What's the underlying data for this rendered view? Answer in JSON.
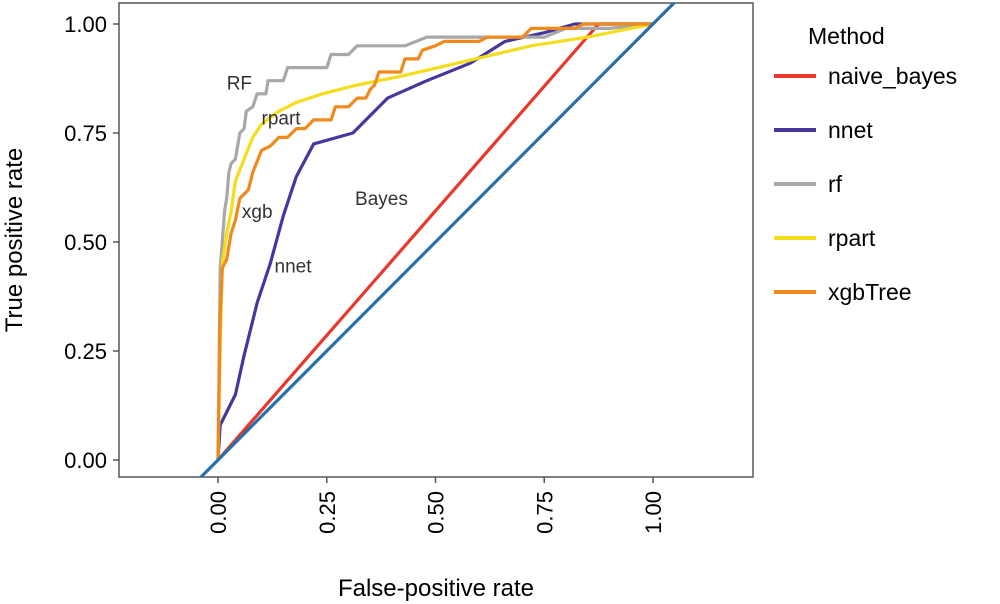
{
  "chart_data": {
    "type": "line",
    "title": "",
    "xlabel": "False-positive rate",
    "ylabel": "True positive rate",
    "xlim": [
      -0.23,
      1.23
    ],
    "ylim": [
      -0.06,
      1.03
    ],
    "x_ticks": [
      "0.00",
      "0.25",
      "0.50",
      "0.75",
      "1.00"
    ],
    "y_ticks": [
      "0.00",
      "0.25",
      "0.50",
      "0.75",
      "1.00"
    ],
    "grid": false,
    "legend": {
      "title": "Method",
      "position": "right"
    },
    "series": [
      {
        "name": "naive_bayes",
        "color": "#e8382b",
        "points": [
          [
            0,
            0
          ],
          [
            0.875,
            1
          ],
          [
            1,
            1
          ]
        ]
      },
      {
        "name": "nnet",
        "color": "#46379e",
        "points": [
          [
            0,
            0
          ],
          [
            0.005,
            0.08
          ],
          [
            0.02,
            0.11
          ],
          [
            0.04,
            0.15
          ],
          [
            0.06,
            0.24
          ],
          [
            0.09,
            0.36
          ],
          [
            0.12,
            0.45
          ],
          [
            0.15,
            0.56
          ],
          [
            0.18,
            0.65
          ],
          [
            0.22,
            0.725
          ],
          [
            0.31,
            0.75
          ],
          [
            0.34,
            0.78
          ],
          [
            0.39,
            0.83
          ],
          [
            0.48,
            0.87
          ],
          [
            0.58,
            0.91
          ],
          [
            0.66,
            0.96
          ],
          [
            0.75,
            0.98
          ],
          [
            0.82,
            1
          ],
          [
            0.92,
            1
          ],
          [
            1,
            1
          ]
        ]
      },
      {
        "name": "rf",
        "color": "#a8a8a8",
        "points": [
          [
            0,
            0
          ],
          [
            0.005,
            0.44
          ],
          [
            0.01,
            0.5
          ],
          [
            0.015,
            0.57
          ],
          [
            0.02,
            0.6
          ],
          [
            0.025,
            0.66
          ],
          [
            0.03,
            0.68
          ],
          [
            0.04,
            0.69
          ],
          [
            0.045,
            0.72
          ],
          [
            0.05,
            0.75
          ],
          [
            0.06,
            0.76
          ],
          [
            0.065,
            0.8
          ],
          [
            0.08,
            0.81
          ],
          [
            0.09,
            0.84
          ],
          [
            0.11,
            0.84
          ],
          [
            0.115,
            0.87
          ],
          [
            0.15,
            0.87
          ],
          [
            0.16,
            0.9
          ],
          [
            0.25,
            0.9
          ],
          [
            0.26,
            0.93
          ],
          [
            0.3,
            0.93
          ],
          [
            0.32,
            0.95
          ],
          [
            0.43,
            0.95
          ],
          [
            0.48,
            0.97
          ],
          [
            0.75,
            0.97
          ],
          [
            0.8,
            0.99
          ],
          [
            0.9,
            0.99
          ],
          [
            1,
            1
          ]
        ]
      },
      {
        "name": "rpart",
        "color": "#f6dd1b",
        "points": [
          [
            0,
            0
          ],
          [
            0.005,
            0.26
          ],
          [
            0.01,
            0.45
          ],
          [
            0.02,
            0.52
          ],
          [
            0.03,
            0.57
          ],
          [
            0.04,
            0.64
          ],
          [
            0.06,
            0.69
          ],
          [
            0.08,
            0.74
          ],
          [
            0.1,
            0.77
          ],
          [
            0.14,
            0.8
          ],
          [
            0.18,
            0.82
          ],
          [
            0.24,
            0.84
          ],
          [
            0.32,
            0.86
          ],
          [
            0.42,
            0.88
          ],
          [
            0.55,
            0.91
          ],
          [
            0.72,
            0.95
          ],
          [
            0.85,
            0.97
          ],
          [
            1,
            1
          ]
        ]
      },
      {
        "name": "xgbTree",
        "color": "#f08a1c",
        "points": [
          [
            0,
            0
          ],
          [
            0.005,
            0.33
          ],
          [
            0.01,
            0.44
          ],
          [
            0.02,
            0.46
          ],
          [
            0.03,
            0.52
          ],
          [
            0.04,
            0.55
          ],
          [
            0.05,
            0.6
          ],
          [
            0.07,
            0.62
          ],
          [
            0.08,
            0.66
          ],
          [
            0.1,
            0.71
          ],
          [
            0.12,
            0.72
          ],
          [
            0.14,
            0.74
          ],
          [
            0.16,
            0.74
          ],
          [
            0.18,
            0.76
          ],
          [
            0.2,
            0.76
          ],
          [
            0.22,
            0.78
          ],
          [
            0.26,
            0.78
          ],
          [
            0.27,
            0.81
          ],
          [
            0.3,
            0.81
          ],
          [
            0.32,
            0.83
          ],
          [
            0.34,
            0.83
          ],
          [
            0.35,
            0.85
          ],
          [
            0.36,
            0.86
          ],
          [
            0.37,
            0.89
          ],
          [
            0.42,
            0.89
          ],
          [
            0.43,
            0.92
          ],
          [
            0.46,
            0.92
          ],
          [
            0.47,
            0.94
          ],
          [
            0.5,
            0.95
          ],
          [
            0.52,
            0.96
          ],
          [
            0.6,
            0.96
          ],
          [
            0.62,
            0.97
          ],
          [
            0.7,
            0.97
          ],
          [
            0.72,
            0.99
          ],
          [
            0.82,
            0.99
          ],
          [
            0.84,
            1
          ],
          [
            1,
            1
          ]
        ]
      }
    ],
    "reference_line": {
      "color": "#2a6fa8",
      "points": [
        [
          -0.05,
          -0.05
        ],
        [
          1.05,
          1.05
        ]
      ]
    },
    "annotations": [
      {
        "text": "RF",
        "x": 0.02,
        "y": 0.85
      },
      {
        "text": "rpart",
        "x": 0.1,
        "y": 0.77
      },
      {
        "text": "xgb",
        "x": 0.055,
        "y": 0.555
      },
      {
        "text": "nnet",
        "x": 0.13,
        "y": 0.43
      },
      {
        "text": "Bayes",
        "x": 0.315,
        "y": 0.585
      }
    ]
  }
}
